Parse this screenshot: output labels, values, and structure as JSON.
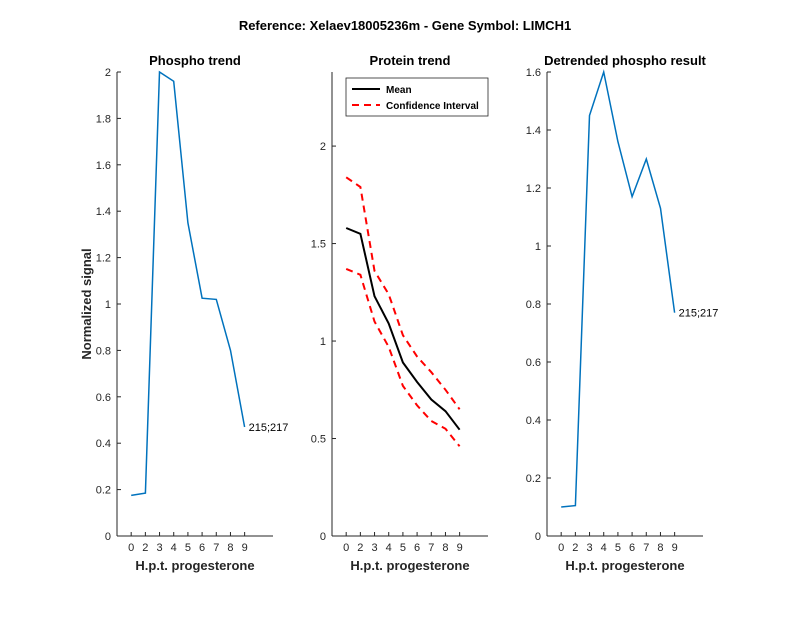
{
  "figure_title": "Reference:  Xelaev18005236m - Gene Symbol:  LIMCH1",
  "chart_data": [
    {
      "type": "line",
      "title": "Phospho trend",
      "xlabel": "H.p.t. progesterone",
      "ylabel": "Normalized signal",
      "x_ticks": [
        0,
        2,
        3,
        4,
        5,
        6,
        7,
        8,
        9
      ],
      "ylim": [
        0,
        2
      ],
      "y_ticks": [
        "0",
        "0.2",
        "0.4",
        "0.6",
        "0.8",
        "1",
        "1.2",
        "1.4",
        "1.6",
        "1.8",
        "2"
      ],
      "series": [
        {
          "name": "phospho",
          "color": "#0072BD",
          "dashed": false,
          "values": [
            0.175,
            0.185,
            2.0,
            1.96,
            1.35,
            1.025,
            1.02,
            0.8,
            0.47
          ]
        }
      ],
      "annotation": "215;217"
    },
    {
      "type": "line",
      "title": "Protein trend",
      "xlabel": "H.p.t. progesterone",
      "ylabel": "",
      "x_ticks": [
        0,
        2,
        3,
        4,
        5,
        6,
        7,
        8,
        9
      ],
      "ylim": [
        0,
        2.38
      ],
      "y_ticks": [
        "0",
        "0.5",
        "1",
        "1.5",
        "2"
      ],
      "legend": [
        "Mean",
        "Confidence Interval"
      ],
      "series": [
        {
          "name": "Mean",
          "color": "#000000",
          "dashed": false,
          "values": [
            1.58,
            1.55,
            1.23,
            1.09,
            0.89,
            0.79,
            0.7,
            0.64,
            0.545
          ]
        },
        {
          "name": "Confidence Interval (upper)",
          "color": "#FF0000",
          "dashed": true,
          "values": [
            1.84,
            1.79,
            1.36,
            1.24,
            1.03,
            0.92,
            0.84,
            0.75,
            0.65
          ]
        },
        {
          "name": "Confidence Interval (lower)",
          "color": "#FF0000",
          "dashed": true,
          "values": [
            1.37,
            1.34,
            1.1,
            0.97,
            0.77,
            0.67,
            0.59,
            0.55,
            0.46
          ]
        }
      ]
    },
    {
      "type": "line",
      "title": "Detrended phospho result",
      "xlabel": "H.p.t. progesterone",
      "ylabel": "",
      "x_ticks": [
        0,
        2,
        3,
        4,
        5,
        6,
        7,
        8,
        9
      ],
      "ylim": [
        0,
        1.6
      ],
      "y_ticks": [
        "0",
        "0.2",
        "0.4",
        "0.6",
        "0.8",
        "1",
        "1.2",
        "1.4",
        "1.6"
      ],
      "series": [
        {
          "name": "detrended",
          "color": "#0072BD",
          "dashed": false,
          "values": [
            0.1,
            0.105,
            1.45,
            1.6,
            1.36,
            1.17,
            1.3,
            1.13,
            0.77
          ]
        }
      ],
      "annotation": "215;217"
    }
  ]
}
